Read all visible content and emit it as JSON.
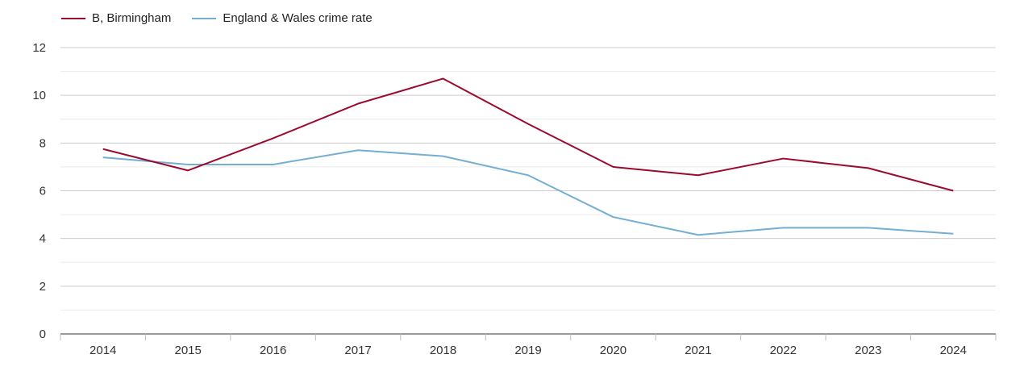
{
  "chart_data": {
    "type": "line",
    "title": "",
    "xlabel": "",
    "ylabel": "",
    "categories": [
      "2014",
      "2015",
      "2016",
      "2017",
      "2018",
      "2019",
      "2020",
      "2021",
      "2022",
      "2023",
      "2024"
    ],
    "ylim": [
      0,
      12
    ],
    "yticks": [
      0,
      2,
      4,
      6,
      8,
      10,
      12
    ],
    "grid": true,
    "legend_position": "top-left",
    "series": [
      {
        "name": "B, Birmingham",
        "color": "#9b0a2e",
        "values": [
          7.75,
          6.85,
          8.2,
          9.65,
          10.7,
          8.8,
          7.0,
          6.65,
          7.35,
          6.95,
          6.0
        ]
      },
      {
        "name": "England & Wales crime rate",
        "color": "#74aed4",
        "values": [
          7.4,
          7.1,
          7.1,
          7.7,
          7.45,
          6.65,
          4.9,
          4.15,
          4.45,
          4.45,
          4.2
        ]
      }
    ]
  }
}
